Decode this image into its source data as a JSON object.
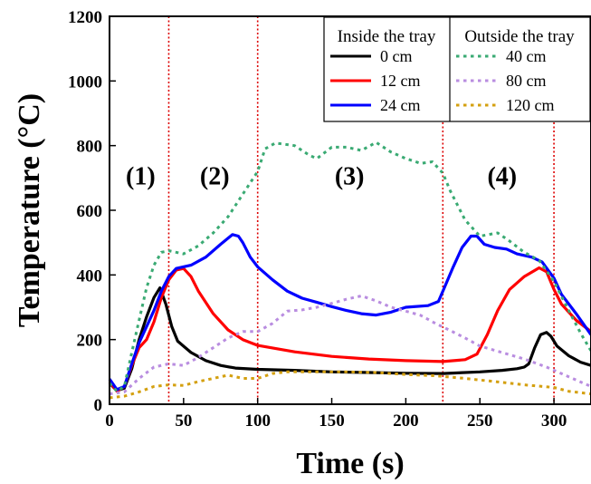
{
  "chart_data": {
    "type": "line",
    "xlabel": "Time (s)",
    "ylabel": "Temperature (°C)",
    "xlim": [
      0,
      325
    ],
    "ylim": [
      0,
      1200
    ],
    "x_ticks": [
      0,
      50,
      100,
      150,
      200,
      250,
      300
    ],
    "y_ticks": [
      0,
      200,
      400,
      600,
      800,
      1000,
      1200
    ],
    "grid": false,
    "phase_boundaries": [
      40,
      100,
      225,
      300
    ],
    "phase_labels": [
      {
        "text": "(1)",
        "x": 21,
        "y": 680
      },
      {
        "text": "(2)",
        "x": 71,
        "y": 680
      },
      {
        "text": "(3)",
        "x": 162,
        "y": 680
      },
      {
        "text": "(4)",
        "x": 265,
        "y": 680
      }
    ],
    "legend": {
      "placement": "top-right",
      "groups": [
        {
          "title": "Inside the tray",
          "items": [
            "0 cm",
            "12 cm",
            "24 cm"
          ]
        },
        {
          "title": "Outside the tray",
          "items": [
            "40 cm",
            "80 cm",
            "120 cm"
          ]
        }
      ]
    },
    "series": [
      {
        "name": "0 cm",
        "color": "#000000",
        "style": "solid",
        "points": [
          [
            0,
            65
          ],
          [
            5,
            42
          ],
          [
            10,
            50
          ],
          [
            15,
            110
          ],
          [
            20,
            200
          ],
          [
            25,
            270
          ],
          [
            30,
            330
          ],
          [
            34,
            360
          ],
          [
            38,
            310
          ],
          [
            42,
            240
          ],
          [
            46,
            195
          ],
          [
            55,
            160
          ],
          [
            65,
            135
          ],
          [
            75,
            120
          ],
          [
            85,
            112
          ],
          [
            100,
            108
          ],
          [
            125,
            105
          ],
          [
            150,
            100
          ],
          [
            175,
            98
          ],
          [
            200,
            96
          ],
          [
            225,
            95
          ],
          [
            250,
            100
          ],
          [
            265,
            105
          ],
          [
            275,
            110
          ],
          [
            280,
            115
          ],
          [
            283,
            125
          ],
          [
            287,
            175
          ],
          [
            291,
            215
          ],
          [
            295,
            222
          ],
          [
            298,
            210
          ],
          [
            302,
            180
          ],
          [
            310,
            150
          ],
          [
            318,
            130
          ],
          [
            325,
            120
          ]
        ]
      },
      {
        "name": "12 cm",
        "color": "#ff0000",
        "style": "solid",
        "points": [
          [
            0,
            70
          ],
          [
            5,
            40
          ],
          [
            10,
            55
          ],
          [
            15,
            120
          ],
          [
            20,
            175
          ],
          [
            25,
            200
          ],
          [
            30,
            255
          ],
          [
            35,
            330
          ],
          [
            40,
            385
          ],
          [
            45,
            415
          ],
          [
            50,
            420
          ],
          [
            55,
            395
          ],
          [
            60,
            350
          ],
          [
            70,
            280
          ],
          [
            80,
            230
          ],
          [
            90,
            200
          ],
          [
            100,
            182
          ],
          [
            125,
            162
          ],
          [
            150,
            148
          ],
          [
            175,
            140
          ],
          [
            200,
            135
          ],
          [
            225,
            132
          ],
          [
            240,
            138
          ],
          [
            248,
            155
          ],
          [
            255,
            215
          ],
          [
            262,
            290
          ],
          [
            270,
            355
          ],
          [
            280,
            395
          ],
          [
            290,
            422
          ],
          [
            295,
            410
          ],
          [
            300,
            355
          ],
          [
            305,
            310
          ],
          [
            315,
            260
          ],
          [
            325,
            225
          ]
        ]
      },
      {
        "name": "24 cm",
        "color": "#0000ff",
        "style": "solid",
        "points": [
          [
            0,
            78
          ],
          [
            5,
            45
          ],
          [
            10,
            55
          ],
          [
            15,
            125
          ],
          [
            20,
            190
          ],
          [
            25,
            240
          ],
          [
            30,
            290
          ],
          [
            35,
            350
          ],
          [
            40,
            395
          ],
          [
            45,
            420
          ],
          [
            55,
            430
          ],
          [
            65,
            455
          ],
          [
            75,
            495
          ],
          [
            83,
            525
          ],
          [
            87,
            520
          ],
          [
            90,
            500
          ],
          [
            95,
            455
          ],
          [
            100,
            425
          ],
          [
            110,
            385
          ],
          [
            120,
            350
          ],
          [
            130,
            328
          ],
          [
            140,
            315
          ],
          [
            150,
            302
          ],
          [
            160,
            290
          ],
          [
            170,
            280
          ],
          [
            180,
            276
          ],
          [
            190,
            285
          ],
          [
            200,
            300
          ],
          [
            215,
            305
          ],
          [
            222,
            318
          ],
          [
            226,
            360
          ],
          [
            232,
            425
          ],
          [
            238,
            485
          ],
          [
            244,
            520
          ],
          [
            248,
            520
          ],
          [
            253,
            495
          ],
          [
            260,
            485
          ],
          [
            268,
            480
          ],
          [
            275,
            465
          ],
          [
            285,
            455
          ],
          [
            292,
            440
          ],
          [
            300,
            390
          ],
          [
            305,
            340
          ],
          [
            315,
            280
          ],
          [
            325,
            215
          ]
        ]
      },
      {
        "name": "40 cm",
        "color": "#3aaa73",
        "style": "dotted",
        "points": [
          [
            0,
            65
          ],
          [
            5,
            40
          ],
          [
            10,
            55
          ],
          [
            15,
            160
          ],
          [
            20,
            260
          ],
          [
            25,
            360
          ],
          [
            30,
            430
          ],
          [
            35,
            470
          ],
          [
            40,
            475
          ],
          [
            50,
            465
          ],
          [
            60,
            490
          ],
          [
            70,
            530
          ],
          [
            80,
            580
          ],
          [
            90,
            650
          ],
          [
            100,
            720
          ],
          [
            105,
            790
          ],
          [
            112,
            808
          ],
          [
            125,
            800
          ],
          [
            135,
            770
          ],
          [
            140,
            760
          ],
          [
            150,
            795
          ],
          [
            160,
            795
          ],
          [
            170,
            785
          ],
          [
            180,
            810
          ],
          [
            190,
            780
          ],
          [
            200,
            760
          ],
          [
            210,
            745
          ],
          [
            218,
            750
          ],
          [
            225,
            715
          ],
          [
            230,
            660
          ],
          [
            240,
            570
          ],
          [
            250,
            520
          ],
          [
            262,
            530
          ],
          [
            270,
            505
          ],
          [
            280,
            470
          ],
          [
            290,
            445
          ],
          [
            300,
            380
          ],
          [
            310,
            290
          ],
          [
            318,
            220
          ],
          [
            325,
            165
          ]
        ]
      },
      {
        "name": "80 cm",
        "color": "#b98de0",
        "style": "dotted",
        "points": [
          [
            0,
            32
          ],
          [
            10,
            38
          ],
          [
            20,
            80
          ],
          [
            30,
            115
          ],
          [
            40,
            125
          ],
          [
            50,
            120
          ],
          [
            60,
            145
          ],
          [
            70,
            175
          ],
          [
            80,
            205
          ],
          [
            90,
            225
          ],
          [
            100,
            225
          ],
          [
            110,
            250
          ],
          [
            120,
            288
          ],
          [
            130,
            292
          ],
          [
            140,
            300
          ],
          [
            150,
            312
          ],
          [
            160,
            325
          ],
          [
            170,
            335
          ],
          [
            180,
            320
          ],
          [
            190,
            300
          ],
          [
            200,
            288
          ],
          [
            210,
            275
          ],
          [
            220,
            250
          ],
          [
            230,
            228
          ],
          [
            240,
            205
          ],
          [
            250,
            180
          ],
          [
            265,
            160
          ],
          [
            280,
            140
          ],
          [
            295,
            115
          ],
          [
            310,
            85
          ],
          [
            325,
            55
          ]
        ]
      },
      {
        "name": "120 cm",
        "color": "#d4a010",
        "style": "dotted",
        "points": [
          [
            0,
            20
          ],
          [
            10,
            25
          ],
          [
            20,
            38
          ],
          [
            30,
            55
          ],
          [
            40,
            60
          ],
          [
            50,
            58
          ],
          [
            60,
            70
          ],
          [
            70,
            80
          ],
          [
            80,
            90
          ],
          [
            90,
            80
          ],
          [
            100,
            80
          ],
          [
            110,
            95
          ],
          [
            120,
            100
          ],
          [
            140,
            100
          ],
          [
            160,
            100
          ],
          [
            180,
            98
          ],
          [
            200,
            92
          ],
          [
            220,
            88
          ],
          [
            240,
            80
          ],
          [
            260,
            70
          ],
          [
            280,
            60
          ],
          [
            300,
            52
          ],
          [
            310,
            40
          ],
          [
            325,
            32
          ]
        ]
      }
    ]
  }
}
